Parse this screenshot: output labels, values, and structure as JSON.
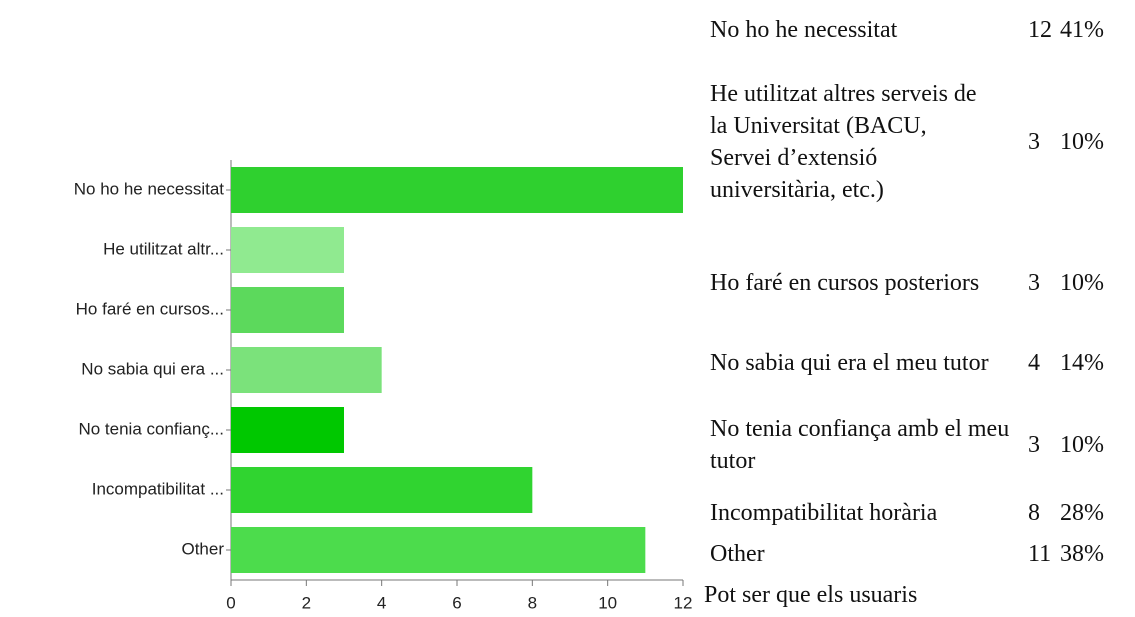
{
  "chart_data": {
    "type": "hbar",
    "categories": [
      "No ho he necessitat",
      "He utilitzat altr...",
      "Ho faré en cursos...",
      "No sabia qui era ...",
      "No tenia confianç...",
      "Incompatibilitat ...",
      "Other"
    ],
    "values": [
      12,
      3,
      3,
      4,
      3,
      8,
      11
    ],
    "colors": [
      "#2fd02f",
      "#90ea90",
      "#5cd95c",
      "#7be27b",
      "#00c800",
      "#30d430",
      "#4cdc4c"
    ],
    "xlim": [
      0,
      12
    ],
    "xticks": [
      0,
      2,
      4,
      6,
      8,
      10,
      12
    ]
  },
  "table": {
    "rows": [
      [
        "No ho he necessitat",
        "12",
        "41%"
      ],
      [
        "He utilitzat altres serveis de la Universitat (BACU, Servei d’extensió universitària, etc.)",
        "3",
        "10%"
      ],
      [
        "Ho faré en cursos posteriors",
        "3",
        "10%"
      ],
      [
        "No sabia qui era el meu tutor",
        "4",
        "14%"
      ],
      [
        "No tenia confiança amb el meu tutor",
        "3",
        "10%"
      ],
      [
        "Incompatibilitat horària",
        "8",
        "28%"
      ],
      [
        "Other",
        "11",
        "38%"
      ]
    ],
    "footer": "Pot ser que els usuaris"
  }
}
